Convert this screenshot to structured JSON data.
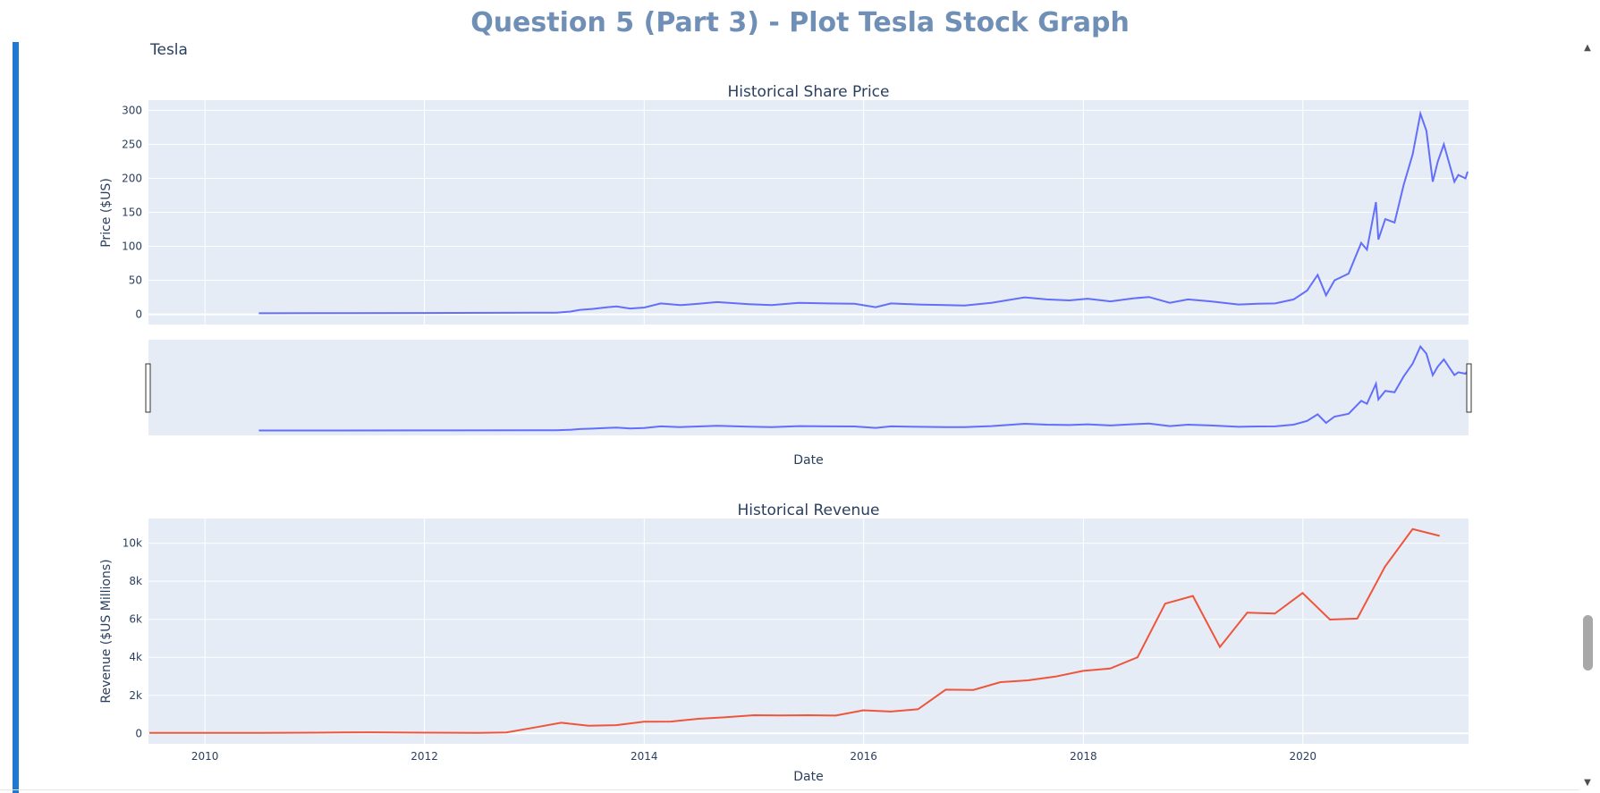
{
  "page": {
    "heading": "Question 5 (Part 3) - Plot Tesla Stock Graph",
    "figure_title": "Tesla"
  },
  "scrollbar": {
    "up_glyph": "▲",
    "down_glyph": "▼",
    "position_fraction": 0.82
  },
  "colors": {
    "price_line": "#636efa",
    "revenue_line": "#ef553b",
    "plot_bg": "#e5ecf6",
    "accent": "#1f78d1",
    "heading": "#6f8fb6"
  },
  "chart_data": [
    {
      "type": "line",
      "title": "Historical Share Price",
      "xlabel": "Date",
      "ylabel": "Price ($US)",
      "x_range": [
        "2009-06-27",
        "2021-07-05"
      ],
      "ylim": [
        -15,
        315
      ],
      "yticks": [
        0,
        50,
        100,
        150,
        200,
        250,
        300
      ],
      "ytick_labels": [
        "0",
        "50",
        "100",
        "150",
        "200",
        "250",
        "300"
      ],
      "grid": true,
      "rangeslider": true,
      "series": [
        {
          "x": [
            "2010-06-29",
            "2011-01-01",
            "2012-01-01",
            "2013-01-01",
            "2013-03-15",
            "2013-05-01",
            "2013-06-01",
            "2013-07-15",
            "2013-09-01",
            "2013-10-01",
            "2013-11-15",
            "2014-01-01",
            "2014-02-25",
            "2014-05-01",
            "2014-07-01",
            "2014-09-01",
            "2014-12-15",
            "2015-03-01",
            "2015-06-01",
            "2015-09-01",
            "2015-12-01",
            "2016-02-10",
            "2016-04-01",
            "2016-07-01",
            "2016-10-01",
            "2016-12-01",
            "2017-03-01",
            "2017-06-20",
            "2017-09-01",
            "2017-11-15",
            "2018-01-15",
            "2018-04-01",
            "2018-06-15",
            "2018-08-07",
            "2018-10-15",
            "2018-12-15",
            "2019-03-01",
            "2019-06-01",
            "2019-08-01",
            "2019-10-01",
            "2019-12-01",
            "2020-01-15",
            "2020-02-19",
            "2020-03-18",
            "2020-04-15",
            "2020-06-01",
            "2020-07-13",
            "2020-08-01",
            "2020-08-31",
            "2020-09-08",
            "2020-10-01",
            "2020-11-01",
            "2020-12-01",
            "2020-12-31",
            "2021-01-26",
            "2021-02-15",
            "2021-03-08",
            "2021-03-25",
            "2021-04-14",
            "2021-05-19",
            "2021-06-01",
            "2021-06-25",
            "2021-07-02"
          ],
          "values": [
            1.5,
            1.7,
            1.9,
            2.3,
            2.5,
            4.0,
            6.5,
            8.0,
            10.5,
            11.5,
            8.5,
            10.0,
            16.0,
            13.5,
            15.5,
            18.0,
            15.0,
            13.5,
            17.0,
            16.0,
            15.5,
            10.5,
            16.0,
            14.5,
            13.5,
            13.0,
            17.0,
            25.0,
            22.0,
            20.5,
            23.0,
            19.0,
            23.5,
            25.5,
            17.0,
            22.0,
            19.0,
            14.5,
            15.5,
            16.0,
            22.0,
            35.0,
            58.0,
            28.0,
            50.0,
            60.0,
            105.0,
            95.0,
            165.0,
            110.0,
            140.0,
            135.0,
            190.0,
            235.0,
            295.0,
            270.0,
            195.0,
            225.0,
            250.0,
            195.0,
            205.0,
            200.0,
            210.0
          ]
        }
      ]
    },
    {
      "type": "line",
      "title": "Historical Revenue",
      "xlabel": "Date",
      "ylabel": "Revenue ($US Millions)",
      "x_range": [
        "2009-06-27",
        "2021-07-05"
      ],
      "xticks": [
        "2010-01-01",
        "2012-01-01",
        "2014-01-01",
        "2016-01-01",
        "2018-01-01",
        "2020-01-01"
      ],
      "xtick_labels": [
        "2010",
        "2012",
        "2014",
        "2016",
        "2018",
        "2020"
      ],
      "ylim": [
        -550,
        11300
      ],
      "yticks": [
        0,
        2000,
        4000,
        6000,
        8000,
        10000
      ],
      "ytick_labels": [
        "0",
        "2k",
        "4k",
        "6k",
        "8k",
        "10k"
      ],
      "grid": true,
      "series": [
        {
          "x": [
            "2009-06-30",
            "2009-12-31",
            "2010-06-30",
            "2010-12-31",
            "2011-06-30",
            "2011-12-31",
            "2012-06-30",
            "2012-09-30",
            "2012-12-31",
            "2013-03-31",
            "2013-06-30",
            "2013-09-30",
            "2013-12-31",
            "2014-03-31",
            "2014-06-30",
            "2014-09-30",
            "2014-12-31",
            "2015-03-31",
            "2015-06-30",
            "2015-09-30",
            "2015-12-31",
            "2016-03-31",
            "2016-06-30",
            "2016-09-30",
            "2016-12-31",
            "2017-03-31",
            "2017-06-30",
            "2017-09-30",
            "2017-12-31",
            "2018-03-31",
            "2018-06-30",
            "2018-09-30",
            "2018-12-31",
            "2019-03-31",
            "2019-06-30",
            "2019-09-30",
            "2019-12-31",
            "2020-03-31",
            "2020-06-30",
            "2020-09-30",
            "2020-12-31",
            "2021-03-31"
          ],
          "values": [
            27,
            27,
            28,
            36,
            58,
            39,
            27,
            50,
            306,
            562,
            405,
            431,
            615,
            621,
            769,
            852,
            957,
            940,
            955,
            937,
            1214,
            1147,
            1270,
            2298,
            2285,
            2696,
            2790,
            2985,
            3288,
            3409,
            4002,
            6824,
            7226,
            4541,
            6350,
            6303,
            7384,
            5985,
            6036,
            8771,
            10744,
            10389
          ]
        }
      ]
    }
  ]
}
